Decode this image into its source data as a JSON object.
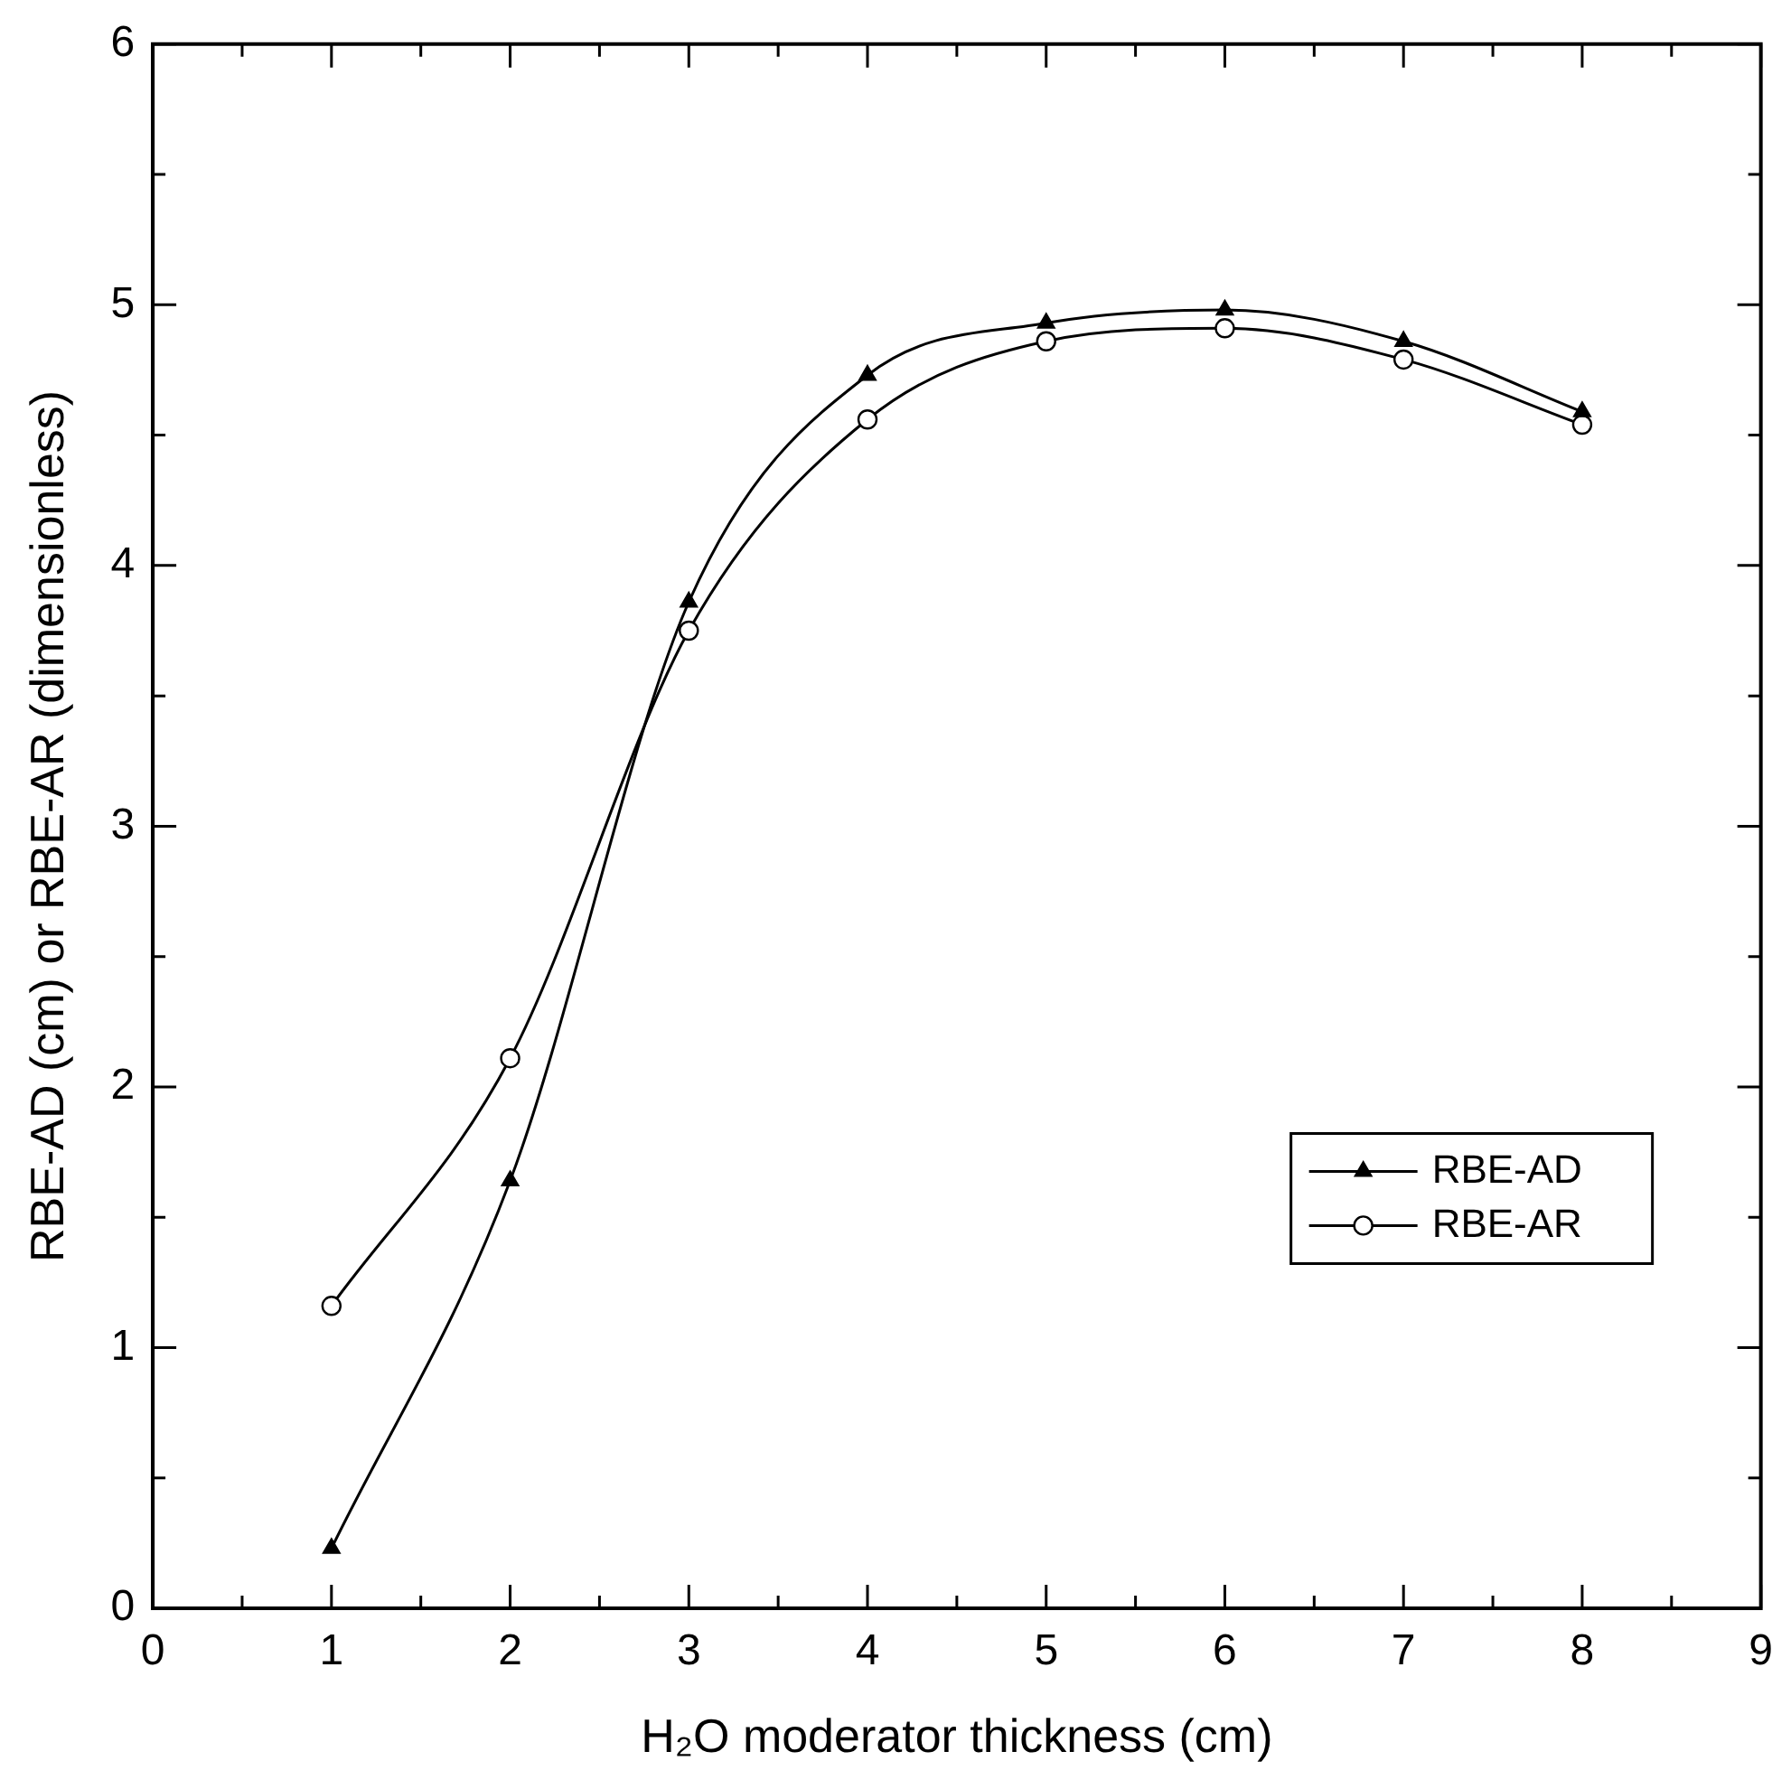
{
  "chart_data": {
    "type": "line",
    "xlabel": "H₂O moderator thickness (cm)",
    "ylabel": "RBE-AD (cm) or RBE-AR (dimensionless)",
    "x": [
      1,
      2,
      3,
      4,
      5,
      6,
      7,
      8
    ],
    "series": [
      {
        "name": "RBE-AD",
        "color": "#000000",
        "marker": "triangle",
        "values": [
          0.23,
          1.64,
          3.86,
          4.73,
          4.93,
          4.98,
          4.86,
          4.59
        ]
      },
      {
        "name": "RBE-AR",
        "color": "#000000",
        "marker": "circle",
        "values": [
          1.16,
          2.11,
          3.75,
          4.56,
          4.86,
          4.91,
          4.79,
          4.54
        ]
      }
    ],
    "xlim": [
      0,
      9
    ],
    "ylim": [
      0,
      6
    ],
    "xticks": [
      0,
      {
        "value": 0.5,
        "label": null
      },
      1,
      {
        "value": 1.5,
        "label": null
      },
      2,
      {
        "value": 2.5,
        "label": null
      },
      3,
      {
        "value": 3.5,
        "label": null
      },
      4,
      {
        "value": 4.5,
        "label": null
      },
      5,
      {
        "value": 5.5,
        "label": null
      },
      6,
      {
        "value": 6.5,
        "label": null
      },
      7,
      {
        "value": 7.5,
        "label": null
      },
      8,
      {
        "value": 8.5,
        "label": null
      },
      9
    ],
    "yticks": [
      0,
      {
        "value": 0.5,
        "label": null
      },
      1,
      {
        "value": 1.5,
        "label": null
      },
      2,
      {
        "value": 2.5,
        "label": null
      },
      3,
      {
        "value": 3.5,
        "label": null
      },
      4,
      {
        "value": 4.5,
        "label": null
      },
      5,
      {
        "value": 5.5,
        "label": null
      },
      6
    ],
    "grid": false,
    "legend": "right",
    "line_style": "solid"
  }
}
